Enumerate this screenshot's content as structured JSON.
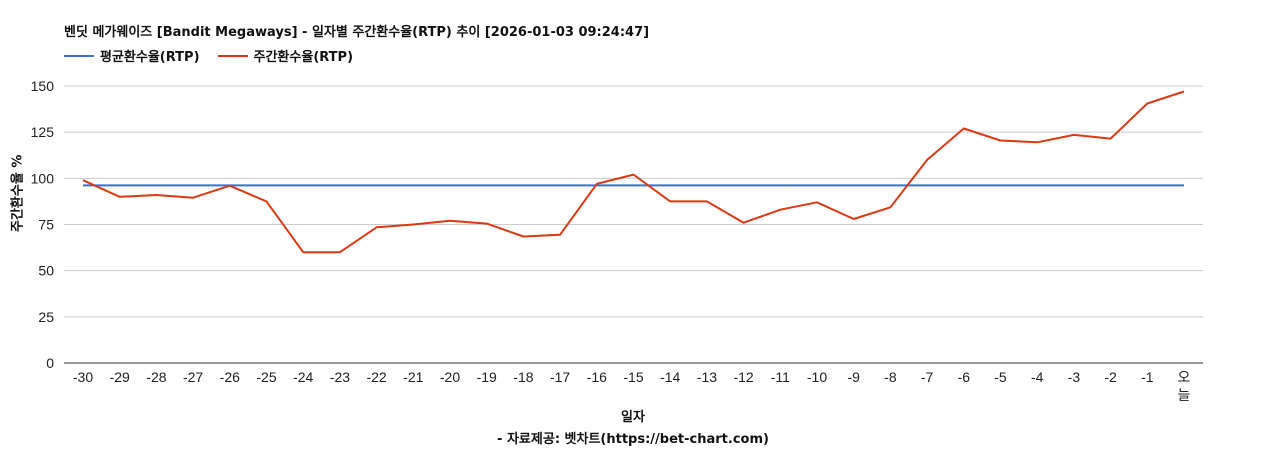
{
  "header": {
    "title": "벤딧 메가웨이즈 [Bandit Megaways] - 일자별 주간환수율(RTP) 추이 [2026-01-03 09:24:47]"
  },
  "legend": [
    {
      "label": "평균환수율(RTP)",
      "color": "#3c6fd6"
    },
    {
      "label": "주간환수율(RTP)",
      "color": "#dc3912"
    }
  ],
  "axes": {
    "ylabel": "주간환수율 %",
    "xlabel": "일자"
  },
  "footer": "- 자료제공: 벳차트(https://bet-chart.com)",
  "chart_data": {
    "type": "line",
    "title": "벤딧 메가웨이즈 [Bandit Megaways] - 일자별 주간환수율(RTP) 추이 [2026-01-03 09:24:47]",
    "xlabel": "일자",
    "ylabel": "주간환수율 %",
    "ylim": [
      0,
      150
    ],
    "yticks": [
      0,
      25,
      50,
      75,
      100,
      125,
      150
    ],
    "grid": true,
    "legend_position": "top-left",
    "categories": [
      "-30",
      "-29",
      "-28",
      "-27",
      "-26",
      "-25",
      "-24",
      "-23",
      "-22",
      "-21",
      "-20",
      "-19",
      "-18",
      "-17",
      "-16",
      "-15",
      "-14",
      "-13",
      "-12",
      "-11",
      "-10",
      "-9",
      "-8",
      "-7",
      "-6",
      "-5",
      "-4",
      "-3",
      "-2",
      "-1",
      "오늘"
    ],
    "series": [
      {
        "name": "평균환수율(RTP)",
        "color": "#3c6fd6",
        "values": [
          96.2,
          96.2,
          96.2,
          96.2,
          96.2,
          96.2,
          96.2,
          96.2,
          96.2,
          96.2,
          96.2,
          96.2,
          96.2,
          96.2,
          96.2,
          96.2,
          96.2,
          96.2,
          96.2,
          96.2,
          96.2,
          96.2,
          96.2,
          96.2,
          96.2,
          96.2,
          96.2,
          96.2,
          96.2,
          96.2,
          96.2
        ]
      },
      {
        "name": "주간환수율(RTP)",
        "color": "#dc3912",
        "values": [
          99,
          90,
          91,
          89.5,
          96,
          87.5,
          60,
          60,
          73.5,
          75,
          77,
          75.5,
          68.5,
          69.5,
          97,
          102,
          87.5,
          87.5,
          76,
          83,
          87,
          78,
          84.3,
          110,
          127,
          120.5,
          119.5,
          123.5,
          121.5,
          140.5,
          147
        ]
      }
    ],
    "footer": "- 자료제공: 벳차트(https://bet-chart.com)"
  }
}
